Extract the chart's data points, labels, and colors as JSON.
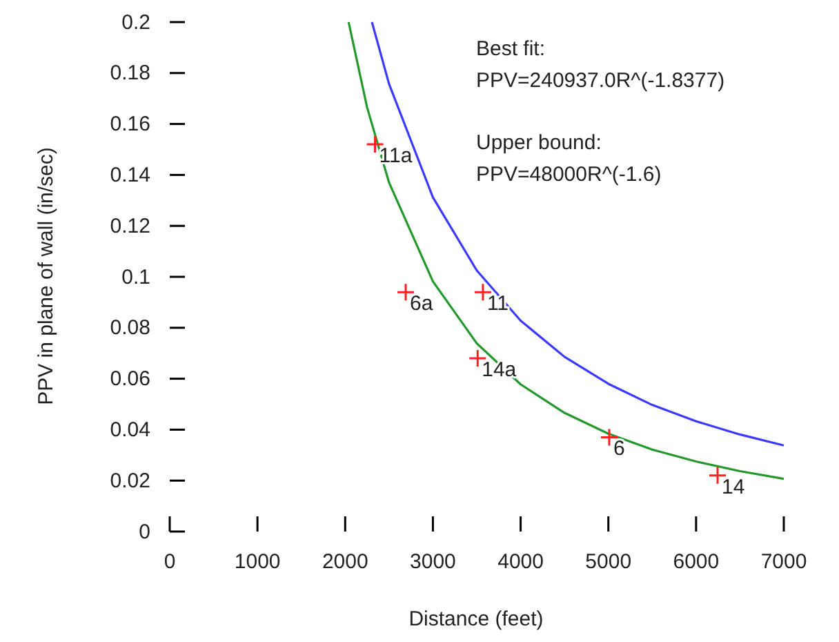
{
  "chart_data": {
    "type": "scatter",
    "xlabel": "Distance (feet)",
    "ylabel": "PPV in plane of wall (in/sec)",
    "xlim": [
      0,
      7000
    ],
    "xticks": [
      0,
      1000,
      2000,
      3000,
      4000,
      5000,
      6000,
      7000
    ],
    "ylim": [
      0,
      0.2
    ],
    "yticks": [
      0,
      0.02,
      0.04,
      0.06,
      0.08,
      0.1,
      0.12,
      0.14,
      0.16,
      0.18,
      0.2
    ],
    "grid": false,
    "series": [
      {
        "type": "line",
        "color": "#22992a",
        "x": [
          2039,
          2250,
          2500,
          3000,
          3500,
          4000,
          4500,
          5000,
          5500,
          6000,
          6500,
          7000
        ],
        "values": [
          0.2,
          0.1665,
          0.137,
          0.0982,
          0.0739,
          0.0578,
          0.0466,
          0.0384,
          0.0322,
          0.0275,
          0.0237,
          0.0207
        ]
      },
      {
        "type": "line",
        "color": "#3a3aff",
        "x": [
          2305,
          2500,
          3000,
          3500,
          4000,
          4500,
          5000,
          5500,
          6000,
          6500,
          7000
        ],
        "values": [
          0.2,
          0.1757,
          0.1312,
          0.1025,
          0.0828,
          0.0686,
          0.058,
          0.0497,
          0.0433,
          0.0381,
          0.0338
        ]
      },
      {
        "color": "#ff2020",
        "marker": "cross",
        "x": [
          2340,
          2690,
          3570,
          3510,
          5010,
          6245
        ],
        "values": [
          0.152,
          0.094,
          0.094,
          0.068,
          0.037,
          0.022
        ]
      }
    ],
    "annotations": [
      {
        "text": "11a",
        "x": 2340,
        "y": 0.152
      },
      {
        "text": "6a",
        "x": 2690,
        "y": 0.094
      },
      {
        "text": "11",
        "x": 3570,
        "y": 0.094
      },
      {
        "text": "14a",
        "x": 3510,
        "y": 0.068
      },
      {
        "text": "6",
        "x": 5010,
        "y": 0.037
      },
      {
        "text": "14",
        "x": 6245,
        "y": 0.022
      },
      "Best fit:\nPPV=240937.0R^(-1.8377)",
      "Upper bound:\nPPV=48000R^(-1.6)"
    ]
  }
}
